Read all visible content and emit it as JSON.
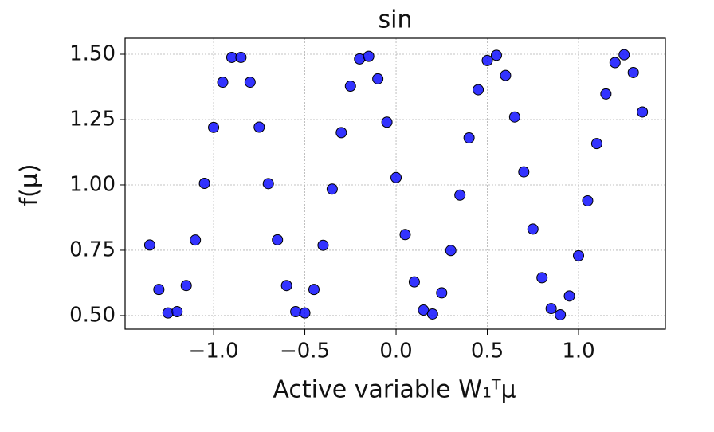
{
  "chart_data": {
    "type": "scatter",
    "title": "sin",
    "x_label": "Active variable W₁ᵀμ",
    "y_label": "f(μ)",
    "xlim": [
      -1.485,
      1.476
    ],
    "ylim": [
      0.448,
      1.561
    ],
    "xticks": [
      {
        "value": -1.0,
        "label": "−1.0"
      },
      {
        "value": -0.5,
        "label": "−0.5"
      },
      {
        "value": 0.0,
        "label": "0.0"
      },
      {
        "value": 0.5,
        "label": "0.5"
      },
      {
        "value": 1.0,
        "label": "1.0"
      }
    ],
    "yticks": [
      {
        "value": 0.5,
        "label": "0.50"
      },
      {
        "value": 0.75,
        "label": "0.75"
      },
      {
        "value": 1.0,
        "label": "1.00"
      },
      {
        "value": 1.25,
        "label": "1.25"
      },
      {
        "value": 1.5,
        "label": "1.50"
      }
    ],
    "grid": true,
    "color": "#0000ff",
    "edgecolor": "#000000",
    "x": [
      -1.35,
      -1.3,
      -1.25,
      -1.2,
      -1.15,
      -1.1,
      -1.05,
      -1.0,
      -0.95,
      -0.9,
      -0.85,
      -0.8,
      -0.75,
      -0.7,
      -0.65,
      -0.6,
      -0.55,
      -0.5,
      -0.45,
      -0.4,
      -0.35,
      -0.3,
      -0.25,
      -0.2,
      -0.15,
      -0.1,
      -0.05,
      0.0,
      0.05,
      0.1,
      0.15,
      0.2,
      0.25,
      0.3,
      0.35,
      0.4,
      0.45,
      0.5,
      0.55,
      0.6,
      0.65,
      0.7,
      0.75,
      0.8,
      0.85,
      0.9,
      0.95,
      1.0,
      1.05,
      1.1,
      1.15,
      1.2,
      1.25,
      1.3,
      1.35
    ],
    "values": [
      0.77,
      0.6,
      0.51,
      0.515,
      0.615,
      0.789,
      1.006,
      1.22,
      1.393,
      1.488,
      1.488,
      1.393,
      1.221,
      1.005,
      0.79,
      0.615,
      0.515,
      0.51,
      0.6,
      0.769,
      0.984,
      1.2,
      1.378,
      1.482,
      1.492,
      1.406,
      1.24,
      1.028,
      0.81,
      0.629,
      0.521,
      0.506,
      0.587,
      0.749,
      0.961,
      1.18,
      1.364,
      1.476,
      1.496,
      1.419,
      1.26,
      1.05,
      0.831,
      0.645,
      0.527,
      0.503,
      0.575,
      0.729,
      0.939,
      1.158,
      1.348,
      1.468,
      1.498,
      1.43,
      1.279
    ]
  }
}
